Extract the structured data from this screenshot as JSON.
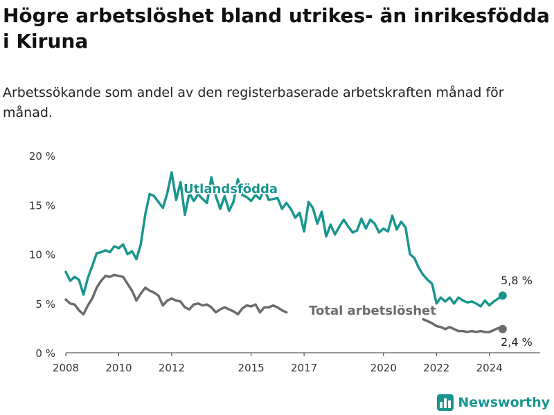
{
  "title": "Högre arbetslöshet bland utrikes- än inrikesfödda i Kiruna",
  "subtitle": "Arbetssökande som andel av den registerbaserade arbetskraften månad för månad.",
  "brand": {
    "name": "Newsworthy",
    "color": "#19958f",
    "icon": "bar-chart-icon"
  },
  "chart_data": {
    "type": "line",
    "title": "Högre arbetslöshet bland utrikes- än inrikesfödda i Kiruna",
    "subtitle": "Arbetssökande som andel av den registerbaserade arbetskraften månad för månad.",
    "xlabel": "",
    "ylabel": "",
    "x_ticks": [
      "2008",
      "2010",
      "2012",
      "2015",
      "2017",
      "2020",
      "2022",
      "2024"
    ],
    "y_ticks": [
      "0 %",
      "5 %",
      "10 %",
      "15 %",
      "20 %"
    ],
    "ylim": [
      0,
      20
    ],
    "xlim": [
      "2008-01",
      "2025-12"
    ],
    "grid": "horizontal baseline only",
    "legend": "inline labels on lines",
    "series": [
      {
        "name": "Utlandsfödda",
        "color": "#19958f",
        "end_label": "5,8 %",
        "points": [
          [
            "2008-01",
            8.2
          ],
          [
            "2008-03",
            7.3
          ],
          [
            "2008-05",
            7.7
          ],
          [
            "2008-07",
            7.4
          ],
          [
            "2008-09",
            5.9
          ],
          [
            "2008-11",
            7.6
          ],
          [
            "2009-01",
            8.8
          ],
          [
            "2009-03",
            10.1
          ],
          [
            "2009-05",
            10.2
          ],
          [
            "2009-07",
            10.4
          ],
          [
            "2009-09",
            10.2
          ],
          [
            "2009-11",
            10.8
          ],
          [
            "2010-01",
            10.6
          ],
          [
            "2010-03",
            11.0
          ],
          [
            "2010-05",
            10.0
          ],
          [
            "2010-07",
            10.3
          ],
          [
            "2010-09",
            9.5
          ],
          [
            "2010-11",
            11.0
          ],
          [
            "2011-01",
            14.0
          ],
          [
            "2011-03",
            16.1
          ],
          [
            "2011-05",
            15.9
          ],
          [
            "2011-07",
            15.3
          ],
          [
            "2011-09",
            14.7
          ],
          [
            "2011-11",
            16.2
          ],
          [
            "2012-01",
            18.3
          ],
          [
            "2012-03",
            15.5
          ],
          [
            "2012-05",
            17.3
          ],
          [
            "2012-07",
            14.0
          ],
          [
            "2012-09",
            16.2
          ],
          [
            "2012-11",
            15.4
          ],
          [
            "2013-01",
            16.1
          ],
          [
            "2013-03",
            15.6
          ],
          [
            "2013-05",
            15.2
          ],
          [
            "2013-07",
            17.8
          ],
          [
            "2013-09",
            15.9
          ],
          [
            "2013-11",
            14.6
          ],
          [
            "2014-01",
            15.9
          ],
          [
            "2014-03",
            14.4
          ],
          [
            "2014-05",
            15.3
          ],
          [
            "2014-07",
            17.6
          ],
          [
            "2014-09",
            16.0
          ],
          [
            "2014-11",
            15.8
          ],
          [
            "2015-01",
            15.4
          ],
          [
            "2015-03",
            16.0
          ],
          [
            "2015-05",
            15.6
          ],
          [
            "2015-07",
            16.6
          ],
          [
            "2015-09",
            15.5
          ],
          [
            "2015-11",
            15.6
          ],
          [
            "2016-01",
            15.7
          ],
          [
            "2016-03",
            14.6
          ],
          [
            "2016-05",
            15.2
          ],
          [
            "2016-07",
            14.6
          ],
          [
            "2016-09",
            13.7
          ],
          [
            "2016-11",
            14.2
          ],
          [
            "2017-01",
            12.3
          ],
          [
            "2017-03",
            15.3
          ],
          [
            "2017-05",
            14.7
          ],
          [
            "2017-07",
            13.1
          ],
          [
            "2017-09",
            14.3
          ],
          [
            "2017-11",
            11.8
          ],
          [
            "2018-01",
            13.0
          ],
          [
            "2018-03",
            12.0
          ],
          [
            "2018-05",
            12.8
          ],
          [
            "2018-07",
            13.5
          ],
          [
            "2018-09",
            12.8
          ],
          [
            "2018-11",
            12.2
          ],
          [
            "2019-01",
            12.4
          ],
          [
            "2019-03",
            13.6
          ],
          [
            "2019-05",
            12.6
          ],
          [
            "2019-07",
            13.5
          ],
          [
            "2019-09",
            13.1
          ],
          [
            "2019-11",
            12.2
          ],
          [
            "2020-01",
            12.6
          ],
          [
            "2020-03",
            12.3
          ],
          [
            "2020-05",
            13.9
          ],
          [
            "2020-07",
            12.5
          ],
          [
            "2020-09",
            13.3
          ],
          [
            "2020-11",
            12.7
          ],
          [
            "2021-01",
            10.0
          ],
          [
            "2021-03",
            9.6
          ],
          [
            "2021-05",
            8.6
          ],
          [
            "2021-07",
            7.9
          ],
          [
            "2021-09",
            7.4
          ],
          [
            "2021-11",
            7.0
          ],
          [
            "2022-01",
            5.0
          ],
          [
            "2022-03",
            5.6
          ],
          [
            "2022-05",
            5.2
          ],
          [
            "2022-07",
            5.6
          ],
          [
            "2022-09",
            5.0
          ],
          [
            "2022-11",
            5.6
          ],
          [
            "2023-01",
            5.3
          ],
          [
            "2023-03",
            5.1
          ],
          [
            "2023-05",
            5.2
          ],
          [
            "2023-07",
            5.0
          ],
          [
            "2023-09",
            4.7
          ],
          [
            "2023-11",
            5.3
          ],
          [
            "2024-01",
            4.8
          ],
          [
            "2024-03",
            5.2
          ],
          [
            "2024-05",
            5.5
          ],
          [
            "2024-07",
            5.8
          ]
        ]
      },
      {
        "name": "Total arbetslöshet",
        "color": "#6b6b6f",
        "end_label": "2,4 %",
        "points": [
          [
            "2008-01",
            5.4
          ],
          [
            "2008-03",
            5.0
          ],
          [
            "2008-05",
            4.9
          ],
          [
            "2008-07",
            4.3
          ],
          [
            "2008-09",
            3.9
          ],
          [
            "2008-11",
            4.8
          ],
          [
            "2009-01",
            5.5
          ],
          [
            "2009-03",
            6.6
          ],
          [
            "2009-05",
            7.3
          ],
          [
            "2009-07",
            7.8
          ],
          [
            "2009-09",
            7.7
          ],
          [
            "2009-11",
            7.9
          ],
          [
            "2010-01",
            7.8
          ],
          [
            "2010-03",
            7.7
          ],
          [
            "2010-05",
            7.0
          ],
          [
            "2010-07",
            6.3
          ],
          [
            "2010-09",
            5.3
          ],
          [
            "2010-11",
            6.0
          ],
          [
            "2011-01",
            6.6
          ],
          [
            "2011-03",
            6.3
          ],
          [
            "2011-05",
            6.1
          ],
          [
            "2011-07",
            5.8
          ],
          [
            "2011-09",
            4.8
          ],
          [
            "2011-11",
            5.3
          ],
          [
            "2012-01",
            5.5
          ],
          [
            "2012-03",
            5.3
          ],
          [
            "2012-05",
            5.2
          ],
          [
            "2012-07",
            4.6
          ],
          [
            "2012-09",
            4.4
          ],
          [
            "2012-11",
            4.9
          ],
          [
            "2013-01",
            5.0
          ],
          [
            "2013-03",
            4.8
          ],
          [
            "2013-05",
            4.9
          ],
          [
            "2013-07",
            4.6
          ],
          [
            "2013-09",
            4.1
          ],
          [
            "2013-11",
            4.4
          ],
          [
            "2014-01",
            4.6
          ],
          [
            "2014-03",
            4.4
          ],
          [
            "2014-05",
            4.2
          ],
          [
            "2014-07",
            3.9
          ],
          [
            "2014-09",
            4.5
          ],
          [
            "2014-11",
            4.8
          ],
          [
            "2015-01",
            4.7
          ],
          [
            "2015-03",
            4.9
          ],
          [
            "2015-05",
            4.1
          ],
          [
            "2015-07",
            4.6
          ],
          [
            "2015-09",
            4.6
          ],
          [
            "2015-11",
            4.8
          ],
          [
            "2016-01",
            4.6
          ],
          [
            "2016-03",
            4.3
          ],
          [
            "2016-05",
            4.1
          ],
          [
            "2021-07",
            3.4
          ],
          [
            "2021-09",
            3.2
          ],
          [
            "2021-11",
            3.0
          ],
          [
            "2022-01",
            2.7
          ],
          [
            "2022-03",
            2.6
          ],
          [
            "2022-05",
            2.4
          ],
          [
            "2022-07",
            2.6
          ],
          [
            "2022-09",
            2.4
          ],
          [
            "2022-11",
            2.2
          ],
          [
            "2023-01",
            2.2
          ],
          [
            "2023-03",
            2.1
          ],
          [
            "2023-05",
            2.2
          ],
          [
            "2023-07",
            2.1
          ],
          [
            "2023-09",
            2.2
          ],
          [
            "2023-11",
            2.1
          ],
          [
            "2024-01",
            2.1
          ],
          [
            "2024-03",
            2.3
          ],
          [
            "2024-05",
            2.5
          ],
          [
            "2024-07",
            2.4
          ]
        ]
      }
    ]
  }
}
